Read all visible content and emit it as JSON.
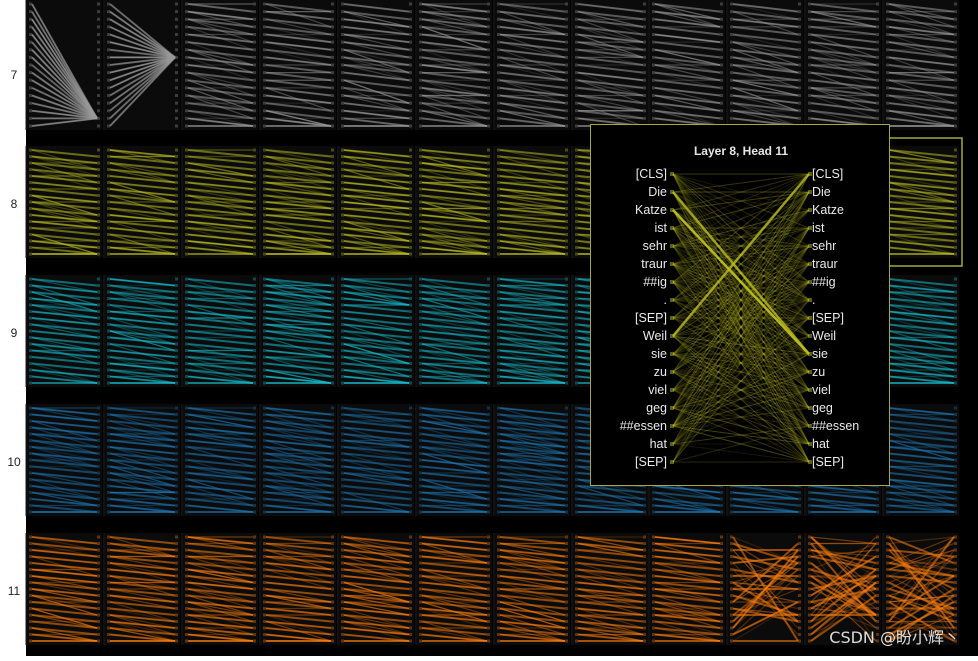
{
  "row_labels": [
    "7",
    "8",
    "9",
    "10",
    "11"
  ],
  "layer_colors": {
    "7": "#9a9a9a",
    "8": "#bcbd22",
    "9": "#17becf",
    "10": "#1f77b4",
    "11": "#ff7f0e",
    "top_edge": "#c061c0"
  },
  "highlighted_thumbnail": {
    "layer": "8",
    "head": "11"
  },
  "detail": {
    "title": "Layer 8, Head 11",
    "tokens": [
      "[CLS]",
      "Die",
      "Katze",
      "ist",
      "sehr",
      "traur",
      "##ig",
      ".",
      "[SEP]",
      "Weil",
      "sie",
      "zu",
      "viel",
      "geg",
      "##essen",
      "hat",
      "[SEP]"
    ],
    "strong_links": [
      [
        2,
        10
      ],
      [
        1,
        10
      ],
      [
        9,
        0
      ]
    ]
  },
  "watermark": "CSDN @盼小辉丶"
}
